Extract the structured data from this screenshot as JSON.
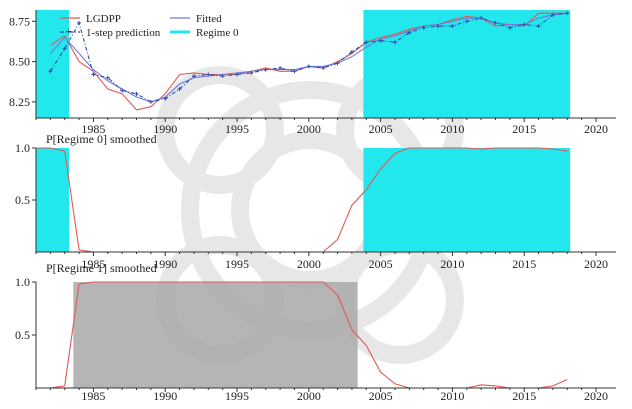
{
  "chart_data": [
    {
      "type": "line",
      "panel": "top",
      "xlim": [
        1981,
        2020
      ],
      "ylim": [
        8.15,
        8.82
      ],
      "yticks": [
        8.25,
        8.5,
        8.75
      ],
      "ytick_labels": [
        "8.25",
        "8.50",
        "8.75"
      ],
      "xticks": [
        1985,
        1990,
        1995,
        2000,
        2005,
        2010,
        2015,
        2020
      ],
      "xtick_labels": [
        "1985",
        "1990",
        "1995",
        "2000",
        "2005",
        "2010",
        "2015",
        "2020"
      ],
      "grid": false,
      "legend_position": "top-left",
      "regime_shading": [
        [
          1981,
          1983.3
        ],
        [
          2003.8,
          2018.2
        ]
      ],
      "series": [
        {
          "name": "LGDPP",
          "color": "#e05a5a",
          "style": "solid",
          "x": [
            1982,
            1983,
            1984,
            1985,
            1986,
            1987,
            1988,
            1989,
            1990,
            1991,
            1992,
            1993,
            1994,
            1995,
            1996,
            1997,
            1998,
            1999,
            2000,
            2001,
            2002,
            2003,
            2004,
            2005,
            2006,
            2007,
            2008,
            2009,
            2010,
            2011,
            2012,
            2013,
            2014,
            2015,
            2016,
            2017,
            2018
          ],
          "y": [
            8.6,
            8.66,
            8.5,
            8.44,
            8.33,
            8.3,
            8.2,
            8.22,
            8.3,
            8.42,
            8.43,
            8.42,
            8.42,
            8.42,
            8.44,
            8.46,
            8.44,
            8.44,
            8.47,
            8.46,
            8.5,
            8.55,
            8.62,
            8.65,
            8.67,
            8.7,
            8.72,
            8.73,
            8.76,
            8.78,
            8.77,
            8.72,
            8.73,
            8.72,
            8.8,
            8.8,
            8.8
          ]
        },
        {
          "name": "Fitted",
          "color": "#6f7bd8",
          "style": "solid",
          "x": [
            1982,
            1983,
            1984,
            1985,
            1986,
            1987,
            1988,
            1989,
            1990,
            1991,
            1992,
            1993,
            1994,
            1995,
            1996,
            1997,
            1998,
            1999,
            2000,
            2001,
            2002,
            2003,
            2004,
            2005,
            2006,
            2007,
            2008,
            2009,
            2010,
            2011,
            2012,
            2013,
            2014,
            2015,
            2016,
            2017,
            2018
          ],
          "y": [
            8.55,
            8.65,
            8.55,
            8.45,
            8.38,
            8.33,
            8.28,
            8.25,
            8.28,
            8.36,
            8.4,
            8.41,
            8.42,
            8.43,
            8.44,
            8.45,
            8.45,
            8.45,
            8.47,
            8.47,
            8.49,
            8.53,
            8.59,
            8.64,
            8.66,
            8.69,
            8.72,
            8.73,
            8.75,
            8.77,
            8.77,
            8.74,
            8.73,
            8.73,
            8.77,
            8.79,
            8.8
          ]
        },
        {
          "name": "1-step prediction",
          "color": "#2c4fa8",
          "style": "dash-dot-markers",
          "x": [
            1982,
            1983,
            1984,
            1985,
            1986,
            1987,
            1988,
            1989,
            1990,
            1991,
            1992,
            1993,
            1994,
            1995,
            1996,
            1997,
            1998,
            1999,
            2000,
            2001,
            2002,
            2003,
            2004,
            2005,
            2006,
            2007,
            2008,
            2009,
            2010,
            2011,
            2012,
            2013,
            2014,
            2015,
            2016,
            2017,
            2018
          ],
          "y": [
            8.44,
            8.58,
            8.74,
            8.42,
            8.4,
            8.32,
            8.3,
            8.25,
            8.27,
            8.33,
            8.41,
            8.42,
            8.41,
            8.42,
            8.43,
            8.45,
            8.46,
            8.44,
            8.47,
            8.46,
            8.49,
            8.56,
            8.62,
            8.63,
            8.62,
            8.68,
            8.71,
            8.72,
            8.72,
            8.75,
            8.77,
            8.74,
            8.71,
            8.73,
            8.72,
            8.79,
            8.8
          ]
        }
      ],
      "legend": [
        "LGDPP",
        "1-step prediction",
        "Fitted",
        "Regime 0"
      ]
    },
    {
      "type": "line",
      "panel": "middle",
      "title": "P[Regime 0] smoothed",
      "xlim": [
        1981,
        2020
      ],
      "ylim": [
        0,
        1
      ],
      "yticks": [
        0.5,
        1.0
      ],
      "ytick_labels": [
        "0.5",
        "1.0"
      ],
      "xtick_labels": [
        "1985",
        "1990",
        "1995",
        "2000",
        "2005",
        "2010",
        "2015",
        "2020"
      ],
      "regime_shading": [
        [
          1981,
          1983.3
        ],
        [
          2003.8,
          2018.2
        ]
      ],
      "series": [
        {
          "name": "P[Regime 0] smoothed",
          "color": "#e05a5a",
          "x": [
            1981,
            1982,
            1983,
            1984,
            1985,
            1990,
            1995,
            2000,
            2001,
            2002,
            2003,
            2004,
            2005,
            2006,
            2007,
            2008,
            2009,
            2010,
            2011,
            2012,
            2013,
            2014,
            2015,
            2016,
            2017,
            2018
          ],
          "y": [
            1.0,
            1.0,
            0.97,
            0.02,
            0.0,
            0.0,
            0.0,
            0.0,
            0.0,
            0.12,
            0.45,
            0.6,
            0.8,
            0.95,
            1.0,
            1.0,
            1.0,
            1.0,
            1.0,
            0.99,
            1.0,
            1.0,
            1.0,
            1.0,
            0.99,
            0.97
          ]
        }
      ]
    },
    {
      "type": "line",
      "panel": "bottom",
      "title": "P[Regime 1] smoothed",
      "xlim": [
        1981,
        2020
      ],
      "ylim": [
        0,
        1
      ],
      "yticks": [
        0.5,
        1.0
      ],
      "ytick_labels": [
        "0.5",
        "1.0"
      ],
      "xtick_labels": [
        "1985",
        "1990",
        "1995",
        "2000",
        "2005",
        "2010",
        "2015",
        "2020"
      ],
      "regime_shading": [
        [
          1983.6,
          2003.4
        ]
      ],
      "series": [
        {
          "name": "P[Regime 1] smoothed",
          "color": "#e05a5a",
          "x": [
            1981,
            1982,
            1983,
            1984,
            1985,
            1990,
            1995,
            2000,
            2001,
            2002,
            2003,
            2004,
            2005,
            2006,
            2007,
            2008,
            2009,
            2010,
            2011,
            2012,
            2013,
            2014,
            2015,
            2016,
            2017,
            2018
          ],
          "y": [
            0.0,
            0.0,
            0.02,
            0.98,
            1.0,
            1.0,
            1.0,
            1.0,
            1.0,
            0.88,
            0.55,
            0.4,
            0.15,
            0.04,
            0.0,
            0.0,
            0.0,
            0.0,
            0.0,
            0.03,
            0.02,
            0.0,
            0.0,
            0.0,
            0.02,
            0.08
          ]
        }
      ]
    }
  ],
  "colors": {
    "regime0_fill": "#22e8ee",
    "regime1_fill": "#a8a8a8",
    "red_line": "#e05a5a",
    "axis": "#333333",
    "watermark": "#bdbdbd"
  }
}
